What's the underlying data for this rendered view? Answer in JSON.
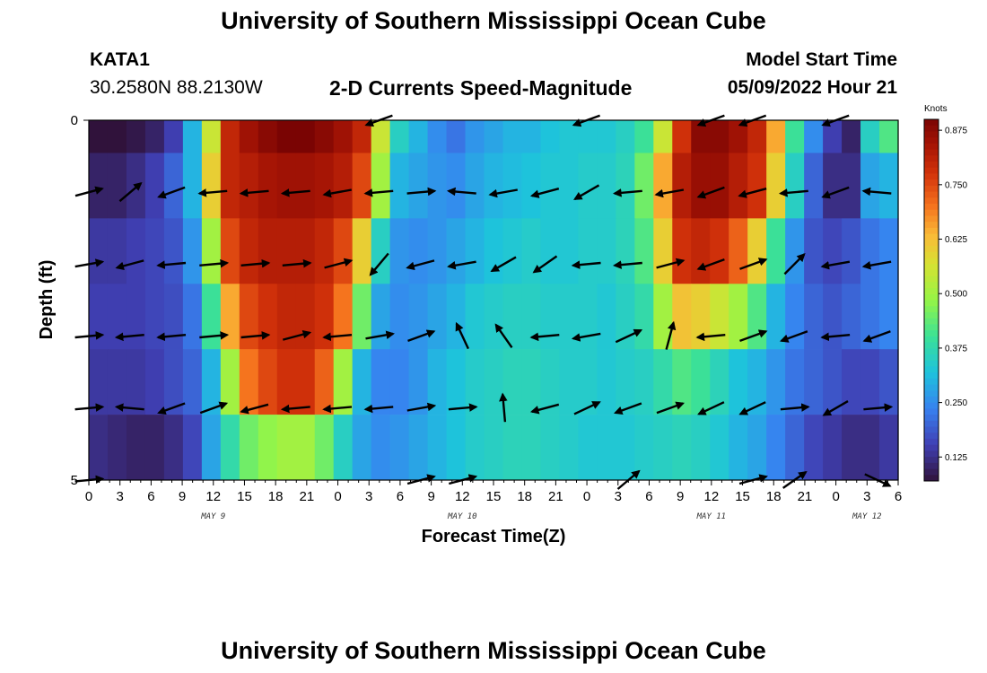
{
  "header": {
    "title": "University of Southern Mississippi Ocean Cube",
    "station": "KATA1",
    "coords": "30.2580N  88.2130W",
    "subtitle": "2-D Currents Speed-Magnitude",
    "model_label": "Model Start Time",
    "model_time": "05/09/2022 Hour 21",
    "footer_title": "University of Southern Mississippi Ocean Cube"
  },
  "chart_data": {
    "type": "heatmap",
    "title": "2-D Currents Speed-Magnitude",
    "xlabel": "Forecast Time(Z)",
    "ylabel": "Depth (ft)",
    "colorbar_label": "Knots",
    "colorbar_ticks": [
      "0.125",
      "0.250",
      "0.375",
      "0.500",
      "0.625",
      "0.750",
      "0.875"
    ],
    "colorbar_range": [
      0.07,
      0.9
    ],
    "x_hours": [
      0,
      78
    ],
    "x_tick_labels": [
      "0",
      "3",
      "6",
      "9",
      "12",
      "15",
      "18",
      "21",
      "0",
      "3",
      "6",
      "9",
      "12",
      "15",
      "18",
      "21",
      "0",
      "3",
      "6",
      "9",
      "12",
      "15",
      "18",
      "21",
      "0",
      "3",
      "6"
    ],
    "date_labels": [
      {
        "hour": 12,
        "label": "MAY 9"
      },
      {
        "hour": 36,
        "label": "MAY 10"
      },
      {
        "hour": 60,
        "label": "MAY 11"
      },
      {
        "hour": 75,
        "label": "MAY 12"
      }
    ],
    "y_range": [
      0,
      5
    ],
    "y_tick_labels": [
      "0",
      "5"
    ],
    "depth_rows": [
      0,
      1,
      2,
      3,
      4,
      5
    ],
    "speed_knots": [
      [
        0.06,
        0.06,
        0.08,
        0.1,
        0.15,
        0.3,
        0.55,
        0.8,
        0.85,
        0.88,
        0.9,
        0.9,
        0.88,
        0.85,
        0.8,
        0.55,
        0.35,
        0.3,
        0.25,
        0.22,
        0.26,
        0.28,
        0.3,
        0.3,
        0.32,
        0.33,
        0.33,
        0.33,
        0.35,
        0.4,
        0.55,
        0.78,
        0.88,
        0.88,
        0.85,
        0.8,
        0.65,
        0.4,
        0.25,
        0.15,
        0.1,
        0.35,
        0.42
      ],
      [
        0.1,
        0.1,
        0.12,
        0.15,
        0.2,
        0.3,
        0.6,
        0.8,
        0.82,
        0.84,
        0.85,
        0.85,
        0.84,
        0.82,
        0.75,
        0.5,
        0.3,
        0.28,
        0.26,
        0.25,
        0.28,
        0.3,
        0.31,
        0.32,
        0.33,
        0.33,
        0.34,
        0.34,
        0.36,
        0.45,
        0.65,
        0.82,
        0.86,
        0.86,
        0.82,
        0.78,
        0.6,
        0.35,
        0.2,
        0.12,
        0.12,
        0.28,
        0.3
      ],
      [
        0.14,
        0.14,
        0.15,
        0.16,
        0.18,
        0.26,
        0.5,
        0.75,
        0.8,
        0.82,
        0.82,
        0.82,
        0.8,
        0.75,
        0.6,
        0.35,
        0.26,
        0.25,
        0.26,
        0.28,
        0.3,
        0.32,
        0.33,
        0.34,
        0.33,
        0.33,
        0.34,
        0.34,
        0.36,
        0.42,
        0.6,
        0.78,
        0.8,
        0.78,
        0.72,
        0.6,
        0.4,
        0.26,
        0.18,
        0.16,
        0.18,
        0.22,
        0.24
      ],
      [
        0.15,
        0.15,
        0.15,
        0.16,
        0.17,
        0.22,
        0.4,
        0.65,
        0.75,
        0.78,
        0.8,
        0.8,
        0.78,
        0.7,
        0.45,
        0.28,
        0.25,
        0.26,
        0.28,
        0.3,
        0.33,
        0.34,
        0.35,
        0.35,
        0.34,
        0.34,
        0.34,
        0.33,
        0.35,
        0.38,
        0.5,
        0.62,
        0.6,
        0.55,
        0.5,
        0.42,
        0.3,
        0.24,
        0.2,
        0.18,
        0.2,
        0.22,
        0.24
      ],
      [
        0.14,
        0.14,
        0.14,
        0.15,
        0.17,
        0.2,
        0.3,
        0.5,
        0.7,
        0.75,
        0.78,
        0.78,
        0.72,
        0.5,
        0.3,
        0.24,
        0.24,
        0.26,
        0.3,
        0.32,
        0.34,
        0.35,
        0.36,
        0.36,
        0.35,
        0.34,
        0.34,
        0.33,
        0.34,
        0.35,
        0.38,
        0.42,
        0.4,
        0.36,
        0.32,
        0.3,
        0.26,
        0.22,
        0.2,
        0.18,
        0.16,
        0.16,
        0.18
      ],
      [
        0.12,
        0.11,
        0.1,
        0.1,
        0.12,
        0.16,
        0.28,
        0.38,
        0.45,
        0.48,
        0.5,
        0.5,
        0.45,
        0.35,
        0.28,
        0.25,
        0.26,
        0.28,
        0.3,
        0.32,
        0.34,
        0.35,
        0.36,
        0.36,
        0.35,
        0.34,
        0.33,
        0.33,
        0.33,
        0.34,
        0.35,
        0.36,
        0.35,
        0.33,
        0.3,
        0.28,
        0.24,
        0.2,
        0.16,
        0.14,
        0.12,
        0.12,
        0.14
      ]
    ],
    "vector_hours": [
      0,
      4,
      8,
      12,
      16,
      20,
      24,
      28,
      32,
      36,
      40,
      44,
      48,
      52,
      56,
      60,
      64,
      68,
      72,
      76
    ],
    "vectors_deg": [
      [
        null,
        null,
        null,
        null,
        null,
        null,
        null,
        200,
        null,
        null,
        null,
        null,
        200,
        null,
        null,
        200,
        200,
        null,
        200,
        null
      ],
      [
        15,
        40,
        200,
        185,
        185,
        185,
        190,
        185,
        5,
        175,
        190,
        195,
        210,
        185,
        190,
        200,
        195,
        185,
        200,
        175
      ],
      [
        10,
        195,
        185,
        5,
        5,
        5,
        15,
        230,
        195,
        190,
        210,
        215,
        185,
        185,
        15,
        200,
        20,
        45,
        190,
        190
      ],
      [
        5,
        185,
        185,
        5,
        5,
        15,
        185,
        10,
        20,
        115,
        125,
        185,
        190,
        25,
        75,
        185,
        20,
        200,
        185,
        200
      ],
      [
        5,
        175,
        200,
        20,
        195,
        185,
        185,
        185,
        10,
        5,
        95,
        195,
        25,
        200,
        20,
        205,
        205,
        5,
        210,
        5
      ],
      [
        5,
        null,
        null,
        null,
        null,
        null,
        null,
        null,
        15,
        15,
        null,
        null,
        null,
        40,
        null,
        null,
        15,
        35,
        null,
        335
      ]
    ]
  }
}
